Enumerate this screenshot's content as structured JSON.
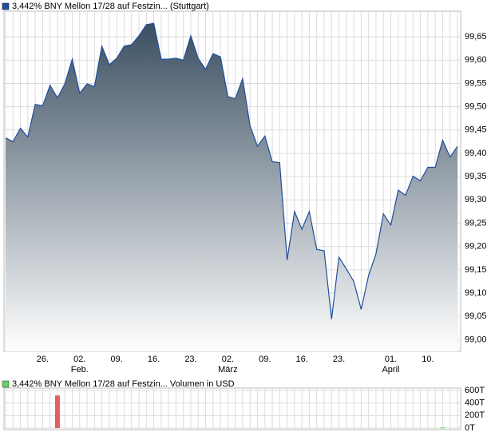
{
  "chart_data": [
    {
      "type": "area",
      "legend": "3,442% BNY Mellon 17/28 auf Festzin... (Stuttgart)",
      "color": "#1f4e9c",
      "fill_top": "#3b4f61",
      "categories": [
        null,
        null,
        null,
        null,
        null,
        "26.",
        null,
        null,
        null,
        null,
        "02.",
        null,
        null,
        null,
        null,
        "09.",
        null,
        null,
        null,
        null,
        "16.",
        null,
        null,
        null,
        null,
        "23.",
        null,
        null,
        null,
        null,
        "02.",
        null,
        null,
        null,
        null,
        "09.",
        null,
        null,
        null,
        null,
        "16.",
        null,
        null,
        null,
        null,
        "23.",
        null,
        null,
        null,
        null,
        null,
        null,
        "01.",
        null,
        null,
        null,
        null,
        "10.",
        null,
        null,
        null,
        null
      ],
      "months": [
        null,
        null,
        null,
        null,
        null,
        null,
        null,
        null,
        null,
        null,
        "Feb.",
        null,
        null,
        null,
        null,
        null,
        null,
        null,
        null,
        null,
        null,
        null,
        null,
        null,
        null,
        null,
        null,
        null,
        null,
        null,
        "März",
        null,
        null,
        null,
        null,
        null,
        null,
        null,
        null,
        null,
        null,
        null,
        null,
        null,
        null,
        null,
        null,
        null,
        null,
        null,
        null,
        null,
        "April",
        null,
        null,
        null,
        null,
        null,
        null,
        null,
        null,
        null
      ],
      "values": [
        99.433,
        99.425,
        99.454,
        99.435,
        99.505,
        99.502,
        99.546,
        99.519,
        99.549,
        99.602,
        99.529,
        99.549,
        99.543,
        99.63,
        99.59,
        99.604,
        99.63,
        99.633,
        99.652,
        99.676,
        99.679,
        99.602,
        99.602,
        99.604,
        99.6,
        99.652,
        99.604,
        99.58,
        99.614,
        99.607,
        99.522,
        99.517,
        99.56,
        99.459,
        99.415,
        99.437,
        99.382,
        99.38,
        99.171,
        99.275,
        99.237,
        99.275,
        99.194,
        99.191,
        99.044,
        99.177,
        99.152,
        99.125,
        99.065,
        99.138,
        99.184,
        99.27,
        99.246,
        99.321,
        99.31,
        99.351,
        99.341,
        99.37,
        99.37,
        99.428,
        99.392,
        99.415
      ],
      "ylim": [
        98.975,
        99.705
      ],
      "yticks": [
        {
          "value": 99.0,
          "label": "99,00"
        },
        {
          "value": 99.05,
          "label": "99,05"
        },
        {
          "value": 99.1,
          "label": "99,10"
        },
        {
          "value": 99.15,
          "label": "99,15"
        },
        {
          "value": 99.2,
          "label": "99,20"
        },
        {
          "value": 99.25,
          "label": "99,25"
        },
        {
          "value": 99.3,
          "label": "99,30"
        },
        {
          "value": 99.35,
          "label": "99,35"
        },
        {
          "value": 99.4,
          "label": "99,40"
        },
        {
          "value": 99.45,
          "label": "99,45"
        },
        {
          "value": 99.5,
          "label": "99,50"
        },
        {
          "value": 99.55,
          "label": "99,55"
        },
        {
          "value": 99.6,
          "label": "99,60"
        },
        {
          "value": 99.65,
          "label": "99,65"
        }
      ],
      "grid": true
    },
    {
      "type": "bar",
      "legend": "3,442% BNY Mellon 17/28 auf Festzin... Volumen in USD",
      "legend_color": "#66cc66",
      "up_color": "#66cc66",
      "down_color": "#e06060",
      "values": [
        0,
        0,
        0,
        0,
        0,
        0,
        0,
        520000,
        0,
        0,
        0,
        0,
        0,
        0,
        0,
        0,
        0,
        0,
        0,
        0,
        0,
        0,
        0,
        0,
        0,
        0,
        0,
        0,
        0,
        0,
        0,
        0,
        0,
        0,
        0,
        0,
        0,
        0,
        0,
        0,
        0,
        0,
        0,
        0,
        0,
        0,
        0,
        0,
        0,
        0,
        0,
        0,
        0,
        0,
        0,
        0,
        0,
        0,
        0,
        8000,
        0,
        0
      ],
      "ylim": [
        0,
        600000
      ],
      "yticks": [
        {
          "value": 0,
          "label": "0T"
        },
        {
          "value": 200000,
          "label": "200T"
        },
        {
          "value": 400000,
          "label": "400T"
        },
        {
          "value": 600000,
          "label": "600T"
        }
      ],
      "grid": true
    }
  ]
}
